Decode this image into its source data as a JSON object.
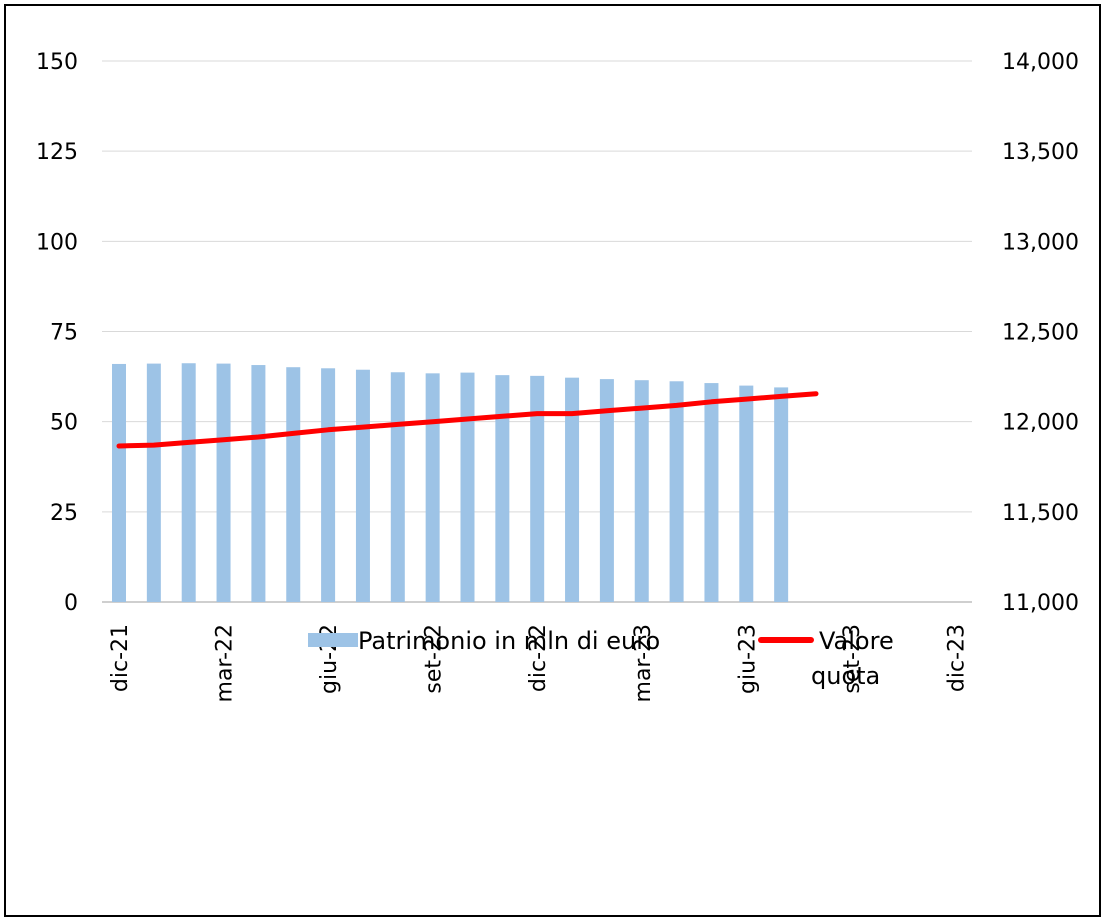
{
  "chart_data": {
    "type": "bar+line",
    "title": "",
    "xlabel": "",
    "ylabel_left": "",
    "ylabel_right": "",
    "x_tick_labels": [
      "dic-21",
      "mar-22",
      "giu-22",
      "set-22",
      "dic-22",
      "mar-23",
      "giu-23",
      "set-23",
      "dic-23"
    ],
    "y_left": {
      "min": 0,
      "max": 150,
      "ticks": [
        "0",
        "25",
        "50",
        "75",
        "100",
        "125",
        "150"
      ]
    },
    "y_right": {
      "min": 11000,
      "max": 14000,
      "ticks": [
        "11,000",
        "11,500",
        "12,000",
        "12,500",
        "13,000",
        "13,500",
        "14,000"
      ]
    },
    "grid": true,
    "legend_position": "bottom",
    "series": [
      {
        "name": "Patrimonio in mln di euro",
        "type": "bar",
        "axis": "left",
        "color": "#9dc3e6",
        "values": [
          66,
          66.1,
          66.2,
          66.1,
          65.7,
          65.1,
          64.8,
          64.4,
          63.7,
          63.4,
          63.6,
          62.9,
          62.7,
          62.2,
          61.8,
          61.5,
          61.2,
          60.7,
          60.0,
          59.5
        ]
      },
      {
        "name": "Valore quota",
        "type": "line",
        "axis": "right",
        "color": "#ff0000",
        "values": [
          11865,
          11870,
          11885,
          11900,
          11915,
          11935,
          11955,
          11970,
          11985,
          12000,
          12015,
          12030,
          12045,
          12045,
          12060,
          12075,
          12090,
          12110,
          12125,
          12140,
          12155
        ]
      }
    ],
    "legend": {
      "bar_label": "Patrimonio in mln di euro",
      "line_label_1": "Valore",
      "line_label_2": "quota"
    }
  }
}
